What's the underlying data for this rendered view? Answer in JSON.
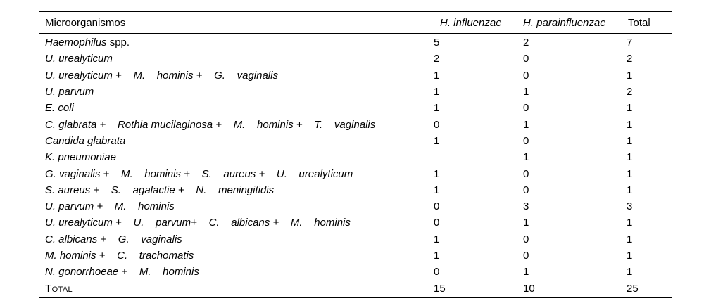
{
  "style": {
    "rule_color": "#000000",
    "text_color": "#000000",
    "background": "#ffffff"
  },
  "table": {
    "headers": [
      "Microorganismos",
      "H. influenzae",
      "H. parainfluenzae",
      "Total"
    ],
    "rows": [
      {
        "em": "Haemophilus",
        "plain": " spp.",
        "smallcaps": false,
        "hi": "5",
        "hp": "2",
        "total": "7"
      },
      {
        "em": "U. urealyticum",
        "plain": "",
        "smallcaps": false,
        "hi": "2",
        "hp": "0",
        "total": "2"
      },
      {
        "em": "U. urealyticum +    M.    hominis +    G.    vaginalis",
        "plain": "",
        "smallcaps": false,
        "hi": "1",
        "hp": "0",
        "total": "1"
      },
      {
        "em": "U. parvum",
        "plain": "",
        "smallcaps": false,
        "hi": "1",
        "hp": "1",
        "total": "2"
      },
      {
        "em": "E. coli",
        "plain": "",
        "smallcaps": false,
        "hi": "1",
        "hp": "0",
        "total": "1"
      },
      {
        "em": "C. glabrata +    Rothia mucilaginosa +    M.    hominis +    T.    vaginalis",
        "plain": "",
        "smallcaps": false,
        "hi": "0",
        "hp": "1",
        "total": "1"
      },
      {
        "em": "Candida glabrata",
        "plain": "",
        "smallcaps": false,
        "hi": "1",
        "hp": "0",
        "total": "1"
      },
      {
        "em": "K. pneumoniae",
        "plain": "",
        "smallcaps": false,
        "hi": "",
        "hp": "1",
        "total": "1"
      },
      {
        "em": "G. vaginalis +    M.    hominis +    S.    aureus +    U.    urealyticum",
        "plain": "",
        "smallcaps": false,
        "hi": "1",
        "hp": "0",
        "total": "1"
      },
      {
        "em": "S. aureus +    S.    agalactie +    N.    meningitidis",
        "plain": "",
        "smallcaps": false,
        "hi": "1",
        "hp": "0",
        "total": "1"
      },
      {
        "em": "U. parvum +    M.    hominis",
        "plain": "",
        "smallcaps": false,
        "hi": "0",
        "hp": "3",
        "total": "3"
      },
      {
        "em": "U. urealyticum +    U.    parvum+    C.    albicans +    M.    hominis",
        "plain": "",
        "smallcaps": false,
        "hi": "0",
        "hp": "1",
        "total": "1"
      },
      {
        "em": "C. albicans +    G.    vaginalis",
        "plain": "",
        "smallcaps": false,
        "hi": "1",
        "hp": "0",
        "total": "1"
      },
      {
        "em": "M. hominis +    C.    trachomatis",
        "plain": "",
        "smallcaps": false,
        "hi": "1",
        "hp": "0",
        "total": "1"
      },
      {
        "em": "N. gonorrhoeae +    M.    hominis",
        "plain": "",
        "smallcaps": false,
        "hi": "0",
        "hp": "1",
        "total": "1"
      },
      {
        "em": "",
        "plain": "Total",
        "smallcaps": true,
        "hi": "15",
        "hp": "10",
        "total": "25"
      }
    ]
  }
}
